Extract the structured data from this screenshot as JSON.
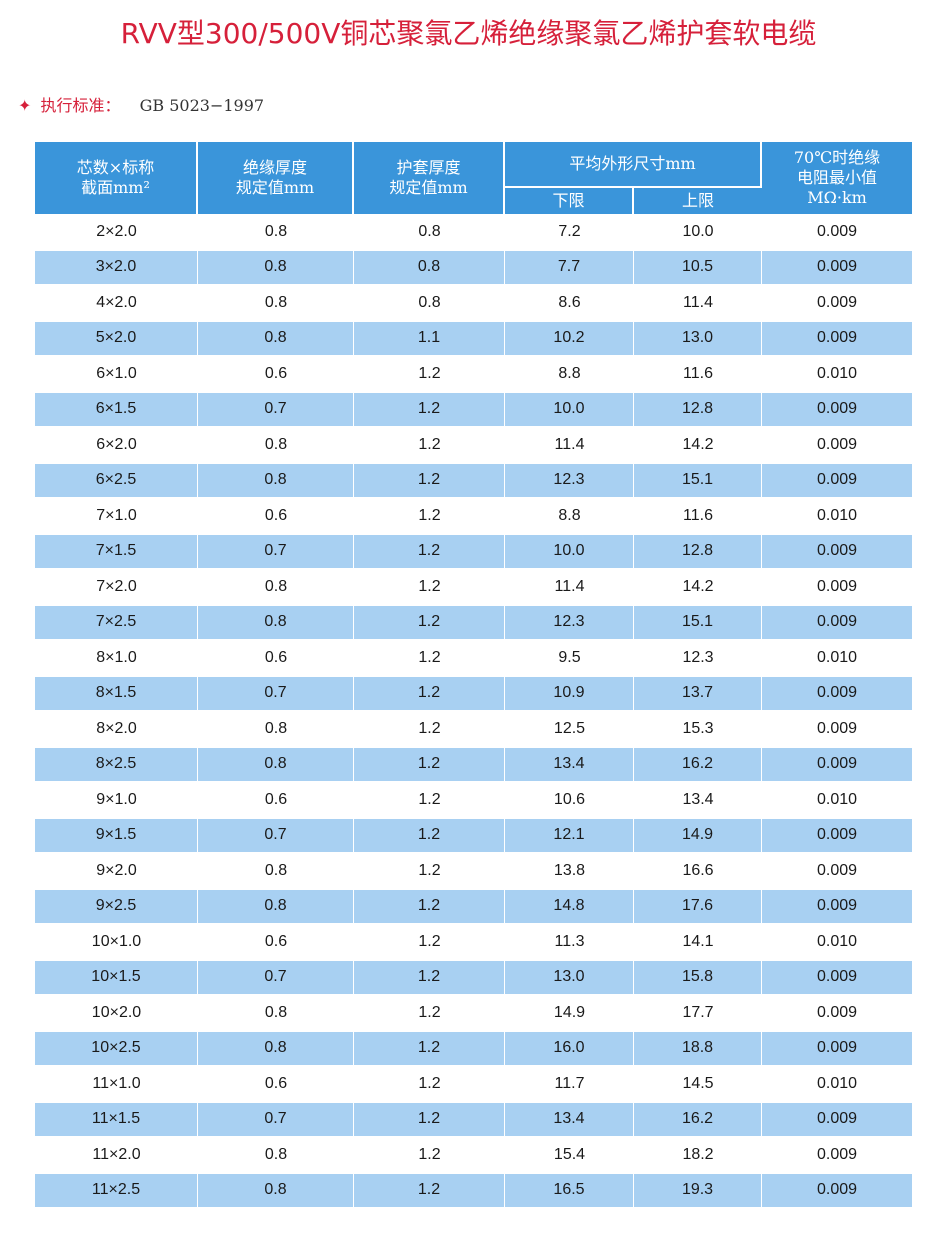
{
  "title": "RVV型300/500V铜芯聚氯乙烯绝缘聚氯乙烯护套软电缆",
  "standard": {
    "symbol": "✦",
    "label": "执行标准：",
    "value": "GB 5023−1997"
  },
  "headers": {
    "col1_line1": "芯数×标称",
    "col1_line2": "截面mm²",
    "col2_line1": "绝缘厚度",
    "col2_line2": "规定值mm",
    "col3_line1": "护套厚度",
    "col3_line2": "规定值mm",
    "col4": "平均外形尺寸mm",
    "col4_lower": "下限",
    "col4_upper": "上限",
    "col5_line1": "70℃时绝缘",
    "col5_line2": "电阻最小值",
    "col5_line3": "MΩ·km"
  },
  "rows": [
    [
      "2×2.0",
      "0.8",
      "0.8",
      "7.2",
      "10.0",
      "0.009"
    ],
    [
      "3×2.0",
      "0.8",
      "0.8",
      "7.7",
      "10.5",
      "0.009"
    ],
    [
      "4×2.0",
      "0.8",
      "0.8",
      "8.6",
      "11.4",
      "0.009"
    ],
    [
      "5×2.0",
      "0.8",
      "1.1",
      "10.2",
      "13.0",
      "0.009"
    ],
    [
      "6×1.0",
      "0.6",
      "1.2",
      "8.8",
      "11.6",
      "0.010"
    ],
    [
      "6×1.5",
      "0.7",
      "1.2",
      "10.0",
      "12.8",
      "0.009"
    ],
    [
      "6×2.0",
      "0.8",
      "1.2",
      "11.4",
      "14.2",
      "0.009"
    ],
    [
      "6×2.5",
      "0.8",
      "1.2",
      "12.3",
      "15.1",
      "0.009"
    ],
    [
      "7×1.0",
      "0.6",
      "1.2",
      "8.8",
      "11.6",
      "0.010"
    ],
    [
      "7×1.5",
      "0.7",
      "1.2",
      "10.0",
      "12.8",
      "0.009"
    ],
    [
      "7×2.0",
      "0.8",
      "1.2",
      "11.4",
      "14.2",
      "0.009"
    ],
    [
      "7×2.5",
      "0.8",
      "1.2",
      "12.3",
      "15.1",
      "0.009"
    ],
    [
      "8×1.0",
      "0.6",
      "1.2",
      "9.5",
      "12.3",
      "0.010"
    ],
    [
      "8×1.5",
      "0.7",
      "1.2",
      "10.9",
      "13.7",
      "0.009"
    ],
    [
      "8×2.0",
      "0.8",
      "1.2",
      "12.5",
      "15.3",
      "0.009"
    ],
    [
      "8×2.5",
      "0.8",
      "1.2",
      "13.4",
      "16.2",
      "0.009"
    ],
    [
      "9×1.0",
      "0.6",
      "1.2",
      "10.6",
      "13.4",
      "0.010"
    ],
    [
      "9×1.5",
      "0.7",
      "1.2",
      "12.1",
      "14.9",
      "0.009"
    ],
    [
      "9×2.0",
      "0.8",
      "1.2",
      "13.8",
      "16.6",
      "0.009"
    ],
    [
      "9×2.5",
      "0.8",
      "1.2",
      "14.8",
      "17.6",
      "0.009"
    ],
    [
      "10×1.0",
      "0.6",
      "1.2",
      "11.3",
      "14.1",
      "0.010"
    ],
    [
      "10×1.5",
      "0.7",
      "1.2",
      "13.0",
      "15.8",
      "0.009"
    ],
    [
      "10×2.0",
      "0.8",
      "1.2",
      "14.9",
      "17.7",
      "0.009"
    ],
    [
      "10×2.5",
      "0.8",
      "1.2",
      "16.0",
      "18.8",
      "0.009"
    ],
    [
      "11×1.0",
      "0.6",
      "1.2",
      "11.7",
      "14.5",
      "0.010"
    ],
    [
      "11×1.5",
      "0.7",
      "1.2",
      "13.4",
      "16.2",
      "0.009"
    ],
    [
      "11×2.0",
      "0.8",
      "1.2",
      "15.4",
      "18.2",
      "0.009"
    ],
    [
      "11×2.5",
      "0.8",
      "1.2",
      "16.5",
      "19.3",
      "0.009"
    ]
  ],
  "colors": {
    "title": "#d6203a",
    "header_bg": "#3a95da",
    "stripe_bg": "#a8d0f2"
  }
}
